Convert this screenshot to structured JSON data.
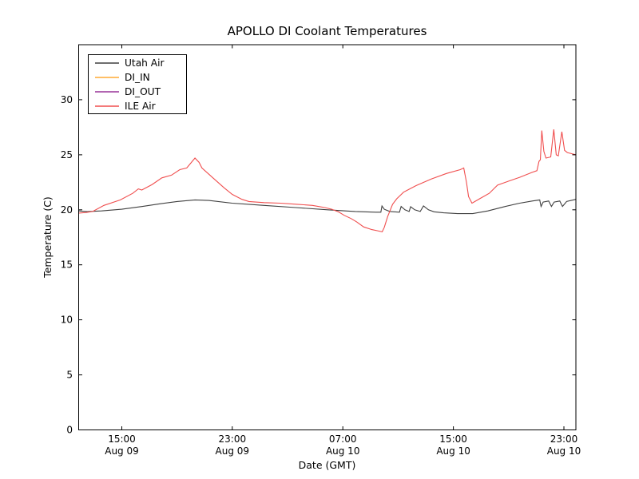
{
  "title": "APOLLO DI Coolant Temperatures",
  "xlabel": "Date (GMT)",
  "ylabel": "Temperature (C)",
  "legend": {
    "position": "upper left",
    "entries": [
      "Utah Air",
      "DI_IN",
      "DI_OUT",
      "ILE Air"
    ]
  },
  "colors": {
    "frame": "#000000",
    "utah_air": "#3f3f3f",
    "di_in": "#ffaa33",
    "di_out": "#993399",
    "ile_air": "#f04e4e",
    "background": "#ffffff"
  },
  "chart_data": {
    "type": "line",
    "title": "APOLLO DI Coolant Temperatures",
    "xlabel": "Date (GMT)",
    "ylabel": "Temperature (C)",
    "grid": false,
    "legend_position": "upper left",
    "x_unit": "hours relative to Aug 09 15:00 GMT",
    "xlim": [
      -3.12,
      32.87
    ],
    "ylim": [
      0,
      35
    ],
    "y_ticks": [
      0,
      5,
      10,
      15,
      20,
      25,
      30
    ],
    "x_ticks": [
      {
        "t": 0,
        "time": "15:00",
        "date": "Aug 09"
      },
      {
        "t": 8,
        "time": "23:00",
        "date": "Aug 09"
      },
      {
        "t": 16,
        "time": "07:00",
        "date": "Aug 10"
      },
      {
        "t": 24,
        "time": "15:00",
        "date": "Aug 10"
      },
      {
        "t": 32,
        "time": "23:00",
        "date": "Aug 10"
      }
    ],
    "series": [
      {
        "name": "Utah Air",
        "color": "#3f3f3f",
        "opacity": 1,
        "points": [
          [
            -3.12,
            19.9
          ],
          [
            -2.5,
            19.83
          ],
          [
            -1.5,
            19.9
          ],
          [
            0,
            20.05
          ],
          [
            1.5,
            20.3
          ],
          [
            2.8,
            20.55
          ],
          [
            4,
            20.75
          ],
          [
            5.3,
            20.9
          ],
          [
            6.3,
            20.85
          ],
          [
            8,
            20.6
          ],
          [
            10.3,
            20.4
          ],
          [
            12.6,
            20.2
          ],
          [
            14.9,
            20.0
          ],
          [
            16.9,
            19.85
          ],
          [
            18.4,
            19.78
          ],
          [
            18.75,
            19.78
          ],
          [
            18.83,
            20.35
          ],
          [
            19.0,
            20.05
          ],
          [
            19.4,
            19.85
          ],
          [
            20.1,
            19.78
          ],
          [
            20.22,
            20.3
          ],
          [
            20.5,
            20.0
          ],
          [
            20.8,
            19.85
          ],
          [
            20.91,
            20.28
          ],
          [
            21.2,
            20.0
          ],
          [
            21.6,
            19.85
          ],
          [
            21.84,
            20.35
          ],
          [
            22.2,
            20.0
          ],
          [
            22.6,
            19.82
          ],
          [
            23.3,
            19.72
          ],
          [
            24.3,
            19.65
          ],
          [
            25.4,
            19.65
          ],
          [
            26.5,
            19.9
          ],
          [
            27.6,
            20.25
          ],
          [
            28.8,
            20.6
          ],
          [
            29.7,
            20.8
          ],
          [
            30.25,
            20.9
          ],
          [
            30.35,
            20.3
          ],
          [
            30.5,
            20.7
          ],
          [
            30.9,
            20.8
          ],
          [
            31.1,
            20.3
          ],
          [
            31.3,
            20.7
          ],
          [
            31.7,
            20.8
          ],
          [
            31.9,
            20.3
          ],
          [
            32.2,
            20.75
          ],
          [
            32.87,
            20.95
          ]
        ]
      },
      {
        "name": "DI_IN",
        "color": "#ffaa33",
        "opacity": 0.95,
        "points": [
          [
            -3.12,
            0
          ],
          [
            32.87,
            0
          ]
        ]
      },
      {
        "name": "DI_OUT",
        "color": "#993399",
        "opacity": 0.6,
        "points": [
          [
            -3.12,
            0
          ],
          [
            32.87,
            0
          ]
        ]
      },
      {
        "name": "ILE Air",
        "color": "#f04e4e",
        "opacity": 1,
        "points": [
          [
            -3.12,
            19.7
          ],
          [
            -2.6,
            19.75
          ],
          [
            -2.1,
            19.85
          ],
          [
            -1.3,
            20.4
          ],
          [
            -0.1,
            20.9
          ],
          [
            0.8,
            21.5
          ],
          [
            1.2,
            21.9
          ],
          [
            1.45,
            21.8
          ],
          [
            2.2,
            22.3
          ],
          [
            2.9,
            22.9
          ],
          [
            3.6,
            23.15
          ],
          [
            4.2,
            23.65
          ],
          [
            4.7,
            23.8
          ],
          [
            5.3,
            24.7
          ],
          [
            5.6,
            24.3
          ],
          [
            5.8,
            23.8
          ],
          [
            6.6,
            22.9
          ],
          [
            7.4,
            22.0
          ],
          [
            8.0,
            21.4
          ],
          [
            8.7,
            20.95
          ],
          [
            9.2,
            20.75
          ],
          [
            10.3,
            20.65
          ],
          [
            11.5,
            20.6
          ],
          [
            12.7,
            20.5
          ],
          [
            13.8,
            20.4
          ],
          [
            14.7,
            20.2
          ],
          [
            15.2,
            20.05
          ],
          [
            15.7,
            19.8
          ],
          [
            16.1,
            19.5
          ],
          [
            16.6,
            19.2
          ],
          [
            17.0,
            18.9
          ],
          [
            17.5,
            18.45
          ],
          [
            18.1,
            18.2
          ],
          [
            18.5,
            18.1
          ],
          [
            18.85,
            18.0
          ],
          [
            19.0,
            18.4
          ],
          [
            19.25,
            19.4
          ],
          [
            19.6,
            20.5
          ],
          [
            19.9,
            21.0
          ],
          [
            20.4,
            21.6
          ],
          [
            21.3,
            22.2
          ],
          [
            22.4,
            22.8
          ],
          [
            23.5,
            23.3
          ],
          [
            24.5,
            23.65
          ],
          [
            24.75,
            23.8
          ],
          [
            24.95,
            22.5
          ],
          [
            25.1,
            21.2
          ],
          [
            25.35,
            20.6
          ],
          [
            25.9,
            21.0
          ],
          [
            26.6,
            21.5
          ],
          [
            27.2,
            22.25
          ],
          [
            28.0,
            22.6
          ],
          [
            28.8,
            22.95
          ],
          [
            29.7,
            23.4
          ],
          [
            30.05,
            23.55
          ],
          [
            30.2,
            24.4
          ],
          [
            30.3,
            24.55
          ],
          [
            30.4,
            27.2
          ],
          [
            30.55,
            25.3
          ],
          [
            30.7,
            24.7
          ],
          [
            31.05,
            24.8
          ],
          [
            31.27,
            27.3
          ],
          [
            31.45,
            25.0
          ],
          [
            31.6,
            24.9
          ],
          [
            31.85,
            27.1
          ],
          [
            32.05,
            25.4
          ],
          [
            32.25,
            25.2
          ],
          [
            32.87,
            25.0
          ]
        ]
      }
    ]
  }
}
